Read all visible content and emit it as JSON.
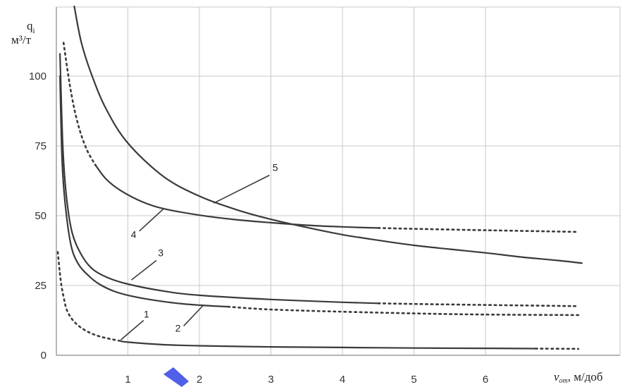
{
  "chart_data": {
    "type": "line",
    "ylabel_main": "q",
    "ylabel_sub": "i",
    "ylabel_unit": "м³/т",
    "xlabel_symbol": "v",
    "xlabel_sub": "от",
    "xlabel_unit": ", м/доб",
    "xlim": [
      0,
      7
    ],
    "ylim": [
      0,
      125
    ],
    "x_ticks": [
      1,
      2,
      3,
      4,
      5,
      6
    ],
    "y_ticks": [
      0,
      25,
      50,
      75,
      100
    ],
    "grid": true,
    "colors": {
      "grid": "#c8c8c8",
      "line": "#3a3a3a",
      "text": "#333333",
      "marker": "#5060e8"
    },
    "series": [
      {
        "name": "1",
        "solid": [
          [
            0.88,
            5.2
          ],
          [
            1.0,
            4.7
          ],
          [
            1.5,
            3.8
          ],
          [
            2.0,
            3.4
          ],
          [
            3.0,
            3.0
          ],
          [
            4.0,
            2.8
          ],
          [
            5.0,
            2.6
          ],
          [
            6.0,
            2.5
          ],
          [
            6.7,
            2.4
          ]
        ],
        "dotted_before": [
          [
            0.02,
            37
          ],
          [
            0.06,
            27
          ],
          [
            0.1,
            21
          ],
          [
            0.15,
            16
          ],
          [
            0.25,
            12
          ],
          [
            0.4,
            9
          ],
          [
            0.6,
            6.8
          ],
          [
            0.88,
            5.2
          ]
        ],
        "dotted_after": [
          [
            6.7,
            2.4
          ],
          [
            7.3,
            2.3
          ]
        ]
      },
      {
        "name": "2",
        "solid": [
          [
            0.05,
            100
          ],
          [
            0.08,
            70
          ],
          [
            0.12,
            55
          ],
          [
            0.2,
            40
          ],
          [
            0.3,
            33
          ],
          [
            0.45,
            28.5
          ],
          [
            0.6,
            25.5
          ],
          [
            0.8,
            23
          ],
          [
            1.0,
            21.5
          ],
          [
            1.3,
            20
          ],
          [
            1.7,
            18.6
          ],
          [
            2.1,
            17.8
          ],
          [
            2.4,
            17.4
          ]
        ],
        "dotted_after": [
          [
            2.4,
            17.4
          ],
          [
            3.0,
            16.4
          ],
          [
            4.0,
            15.6
          ],
          [
            5.0,
            15.0
          ],
          [
            6.0,
            14.6
          ],
          [
            7.3,
            14.4
          ]
        ]
      },
      {
        "name": "3",
        "solid": [
          [
            0.05,
            108
          ],
          [
            0.09,
            75
          ],
          [
            0.14,
            57
          ],
          [
            0.22,
            44
          ],
          [
            0.35,
            36
          ],
          [
            0.5,
            31
          ],
          [
            0.7,
            28
          ],
          [
            1.0,
            25.5
          ],
          [
            1.5,
            23
          ],
          [
            2.0,
            21.5
          ],
          [
            3.0,
            20
          ],
          [
            4.0,
            19
          ],
          [
            4.5,
            18.6
          ]
        ],
        "dotted_after": [
          [
            4.5,
            18.6
          ],
          [
            5.5,
            18.2
          ],
          [
            7.3,
            17.6
          ]
        ]
      },
      {
        "name": "4",
        "solid": [
          [
            0.55,
            68
          ],
          [
            0.7,
            63
          ],
          [
            0.9,
            59
          ],
          [
            1.2,
            55
          ],
          [
            1.5,
            52.5
          ],
          [
            2.0,
            50.2
          ],
          [
            2.5,
            48.6
          ],
          [
            3.0,
            47.5
          ],
          [
            3.5,
            46.6
          ],
          [
            4.0,
            46
          ],
          [
            4.5,
            45.6
          ]
        ],
        "dotted_before": [
          [
            0.1,
            112
          ],
          [
            0.2,
            95
          ],
          [
            0.3,
            83
          ],
          [
            0.42,
            74
          ],
          [
            0.55,
            68
          ]
        ],
        "dotted_after": [
          [
            4.5,
            45.6
          ],
          [
            5.0,
            45.3
          ],
          [
            6.0,
            44.8
          ],
          [
            7.3,
            44.2
          ]
        ]
      },
      {
        "name": "5",
        "solid": [
          [
            0.25,
            125
          ],
          [
            0.35,
            112
          ],
          [
            0.5,
            100
          ],
          [
            0.7,
            88
          ],
          [
            1.0,
            76
          ],
          [
            1.5,
            64
          ],
          [
            2.0,
            57
          ],
          [
            2.5,
            52.3
          ],
          [
            3.0,
            48.7
          ],
          [
            3.5,
            45.8
          ],
          [
            4.0,
            43.2
          ],
          [
            4.5,
            41.2
          ],
          [
            5.0,
            39.4
          ],
          [
            5.5,
            38
          ],
          [
            6.0,
            36.7
          ],
          [
            6.5,
            35.2
          ],
          [
            7.0,
            34
          ],
          [
            7.35,
            33
          ]
        ]
      }
    ],
    "curve_labels": [
      {
        "text": "1",
        "pointer": [
          [
            0.9,
            5.5
          ],
          [
            1.22,
            12.5
          ]
        ],
        "at": [
          1.26,
          13.5
        ]
      },
      {
        "text": "2",
        "pointer": [
          [
            2.05,
            17.8
          ],
          [
            1.78,
            10.5
          ]
        ],
        "at": [
          1.7,
          8.5
        ]
      },
      {
        "text": "3",
        "pointer": [
          [
            1.05,
            27
          ],
          [
            1.4,
            34
          ]
        ],
        "at": [
          1.46,
          35.5
        ]
      },
      {
        "text": "4",
        "pointer": [
          [
            1.5,
            52.5
          ],
          [
            1.16,
            44.5
          ]
        ],
        "at": [
          1.08,
          42
        ]
      },
      {
        "text": "5",
        "pointer": [
          [
            2.2,
            54.5
          ],
          [
            2.98,
            64.5
          ]
        ],
        "at": [
          3.06,
          66
        ]
      }
    ]
  }
}
